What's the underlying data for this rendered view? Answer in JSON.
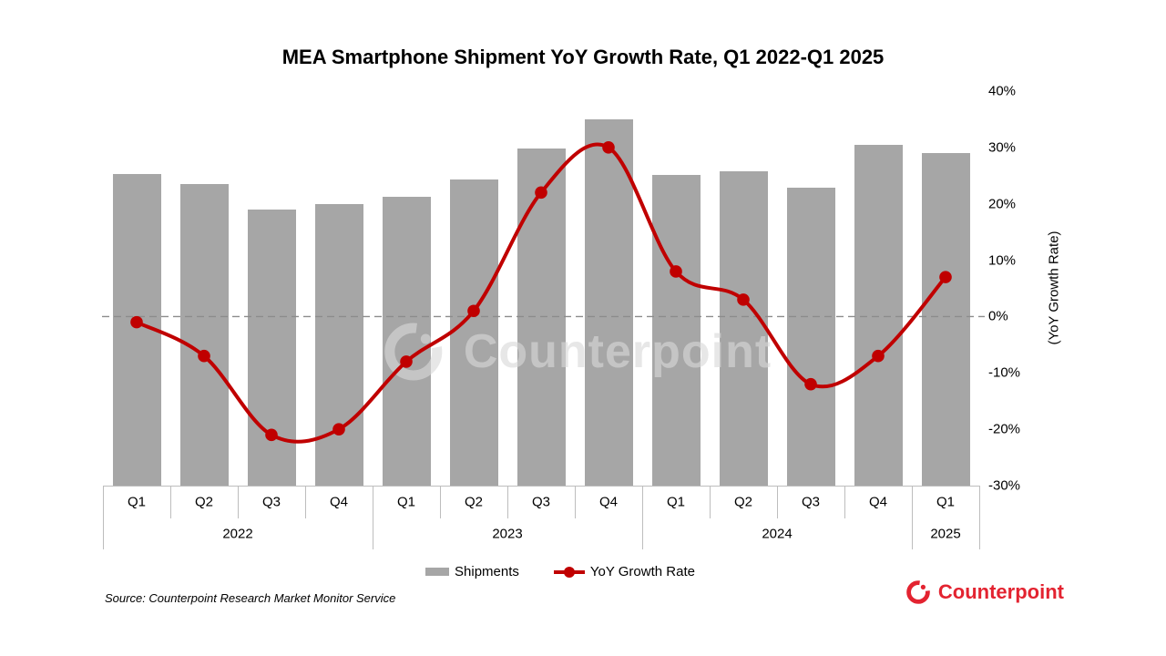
{
  "title": "MEA Smartphone Shipment YoY Growth Rate, Q1 2022-Q1 2025",
  "chart_data": {
    "type": "combo-bar-line",
    "categories": [
      "Q1",
      "Q2",
      "Q3",
      "Q4",
      "Q1",
      "Q2",
      "Q3",
      "Q4",
      "Q1",
      "Q2",
      "Q3",
      "Q4",
      "Q1"
    ],
    "year_groups": [
      {
        "label": "2022",
        "span": 4
      },
      {
        "label": "2023",
        "span": 4
      },
      {
        "label": "2024",
        "span": 4
      },
      {
        "label": "2025",
        "span": 1
      }
    ],
    "series": [
      {
        "name": "Shipments",
        "type": "bar",
        "axis": "left-hidden",
        "color": "#a6a6a6",
        "values_relative_pct_of_max": [
          85.1,
          82.3,
          75.4,
          76.9,
          78.9,
          83.6,
          92.0,
          100,
          84.8,
          85.8,
          81.3,
          93.0,
          90.8
        ]
      },
      {
        "name": "YoY Growth Rate",
        "type": "line",
        "axis": "right",
        "color": "#c00000",
        "values_pct": [
          -1,
          -7,
          -21,
          -20,
          -8,
          1,
          22,
          30,
          8,
          3,
          -12,
          -7,
          7
        ]
      }
    ],
    "right_axis": {
      "title": "(YoY Growth Rate)",
      "tick_labels": [
        "40%",
        "30%",
        "20%",
        "10%",
        "0%",
        "-10%",
        "-20%",
        "-30%"
      ],
      "max": 40,
      "min": -30,
      "zero_gridline_style": "dashed"
    },
    "legend_position": "bottom"
  },
  "watermark": {
    "text": "Counterpoint"
  },
  "source_note": "Source: Counterpoint Research Market Monitor Service",
  "branding": {
    "logo_text": "Counterpoint",
    "brand_color": "#e32330"
  },
  "colors": {
    "bar": "#a6a6a6",
    "line": "#c00000",
    "zero_line": "#8c8c8c",
    "axis_border": "#bdbdbd",
    "text": "#000000",
    "background": "#ffffff"
  }
}
